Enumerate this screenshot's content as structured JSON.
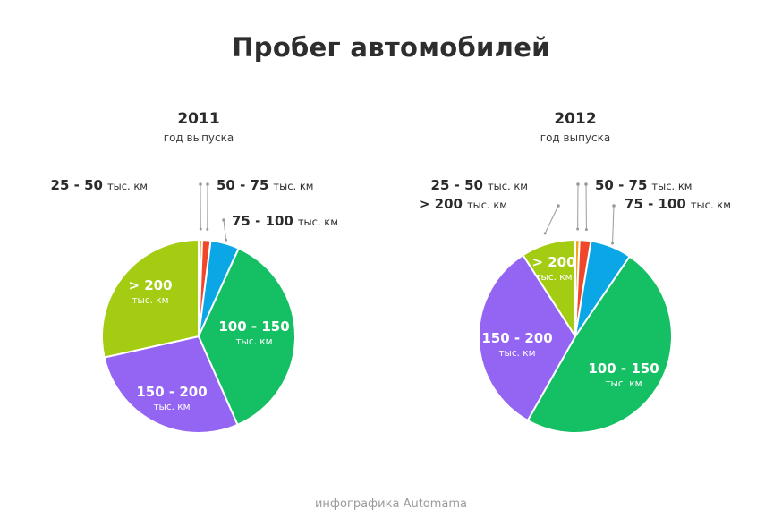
{
  "title": "Пробег автомобилей",
  "credit": "инфографика Automama",
  "colors": {
    "25-50": "#f5a31a",
    "50-75": "#f0462a",
    "75-100": "#0aa6e6",
    "100-150": "#14c063",
    "150-200": "#9464f2",
    ">200": "#a3cc12"
  },
  "chart_data": [
    {
      "type": "pie",
      "year": "2011",
      "subtitle": "год выпуска",
      "unit": "тыс. км",
      "categories": [
        "25 - 50",
        "50 - 75",
        "75 - 100",
        "100 - 150",
        "150 - 200",
        "> 200"
      ],
      "color_keys": [
        "25-50",
        "50-75",
        "75-100",
        "100-150",
        "150-200",
        ">200"
      ],
      "values": [
        0.6,
        1.4,
        4.8,
        36.6,
        28.1,
        28.5
      ]
    },
    {
      "type": "pie",
      "year": "2012",
      "subtitle": "год выпуска",
      "unit": "тыс. км",
      "categories": [
        "25 - 50",
        "50 - 75",
        "75 - 100",
        "100 - 150",
        "150 - 200",
        "> 200"
      ],
      "color_keys": [
        "25-50",
        "50-75",
        "75-100",
        "100-150",
        "150-200",
        ">200"
      ],
      "values": [
        0.7,
        1.9,
        6.9,
        48.7,
        32.7,
        9.1
      ]
    }
  ]
}
